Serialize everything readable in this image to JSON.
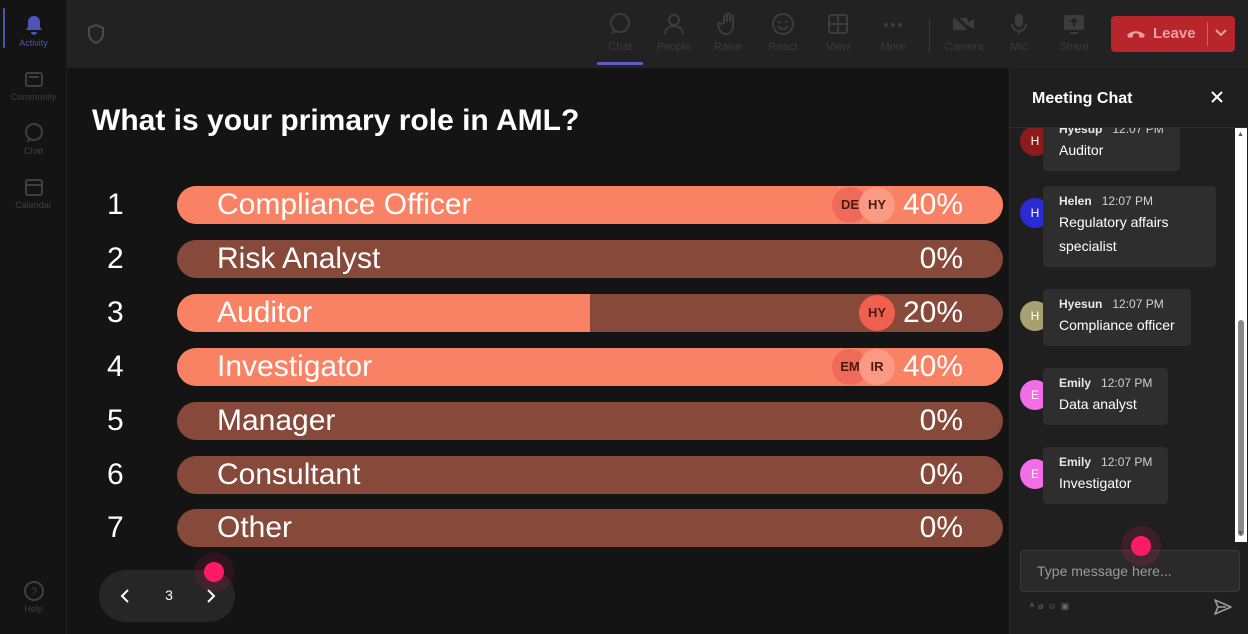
{
  "rail": {
    "items": [
      {
        "label": "Activity",
        "icon": "bell-icon"
      },
      {
        "label": "Community",
        "icon": "community-icon"
      },
      {
        "label": "Chat",
        "icon": "chat-icon"
      },
      {
        "label": "Calendar",
        "icon": "calendar-icon"
      }
    ],
    "help_label": "Help"
  },
  "toolbar": {
    "chat": "Chat",
    "people": "People",
    "raise": "Raise",
    "react": "React",
    "view": "View",
    "more": "More",
    "camera": "Camera",
    "mic": "Mic",
    "share": "Share",
    "leave": "Leave"
  },
  "poll": {
    "question": "What is your primary role in AML?",
    "options": [
      {
        "num": "1",
        "label": "Compliance Officer",
        "percent": "40%",
        "fill": 1.0,
        "voters": [
          "DE",
          "HY"
        ]
      },
      {
        "num": "2",
        "label": "Risk Analyst",
        "percent": "0%",
        "fill": 0.0,
        "voters": []
      },
      {
        "num": "3",
        "label": "Auditor",
        "percent": "20%",
        "fill": 0.5,
        "voters": [
          "HY"
        ]
      },
      {
        "num": "4",
        "label": "Investigator",
        "percent": "40%",
        "fill": 1.0,
        "voters": [
          "EM",
          "IR"
        ]
      },
      {
        "num": "5",
        "label": "Manager",
        "percent": "0%",
        "fill": 0.0,
        "voters": []
      },
      {
        "num": "6",
        "label": "Consultant",
        "percent": "0%",
        "fill": 0.0,
        "voters": []
      },
      {
        "num": "7",
        "label": "Other",
        "percent": "0%",
        "fill": 0.0,
        "voters": []
      }
    ],
    "page": "3"
  },
  "chat": {
    "title": "Meeting Chat",
    "messages": [
      {
        "initial": "H",
        "name": "Hyesup",
        "time": "12:07 PM",
        "text": "Auditor",
        "color": "#8b1a1a"
      },
      {
        "initial": "H",
        "name": "Helen",
        "time": "12:07 PM",
        "text": "Regulatory affairs specialist",
        "color": "#2b2bd6"
      },
      {
        "initial": "H",
        "name": "Hyesun",
        "time": "12:07 PM",
        "text": "Compliance officer",
        "color": "#a8a070"
      },
      {
        "initial": "E",
        "name": "Emily",
        "time": "12:07 PM",
        "text": "Data analyst",
        "color": "#f36ee6"
      },
      {
        "initial": "E",
        "name": "Emily",
        "time": "12:07 PM",
        "text": "Investigator",
        "color": "#f36ee6"
      }
    ],
    "input_placeholder": "Type message here..."
  },
  "colors": {
    "bar_fill": "#f98264",
    "bar_track": "#87493a",
    "leave": "#b8262c",
    "accent": "#5b5fc7",
    "cursor": "#ff1a66"
  }
}
